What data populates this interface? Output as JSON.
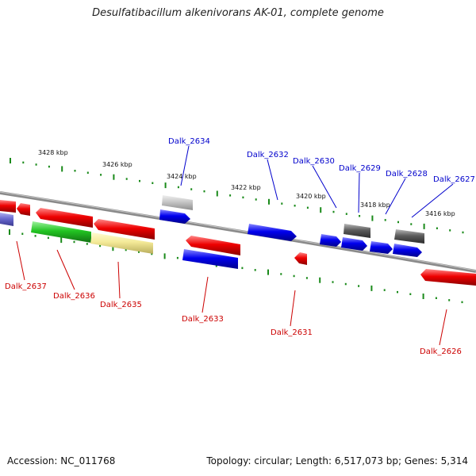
{
  "title": "Desulfatibacillum alkenivorans AK-01, complete genome",
  "accession": "Accession: NC_011768",
  "topology": "Topology: circular; Length: 6,517,073 bp; Genes: 5,314",
  "colors": {
    "backbone": "#8a8a8a",
    "tick": "#1a8a1a",
    "forward_label": "#0000cc",
    "reverse_label": "#cc0000"
  },
  "ruler_labels": [
    "3428 kbp",
    "3426 kbp",
    "3424 kbp",
    "3422 kbp",
    "3420 kbp",
    "3418 kbp",
    "3416 kbp"
  ],
  "forward_genes": [
    "Dalk_2634",
    "Dalk_2632",
    "Dalk_2630",
    "Dalk_2629",
    "Dalk_2628",
    "Dalk_2627"
  ],
  "reverse_genes": [
    "Dalk_2637",
    "Dalk_2636",
    "Dalk_2635",
    "Dalk_2633",
    "Dalk_2631",
    "Dalk_2626"
  ]
}
